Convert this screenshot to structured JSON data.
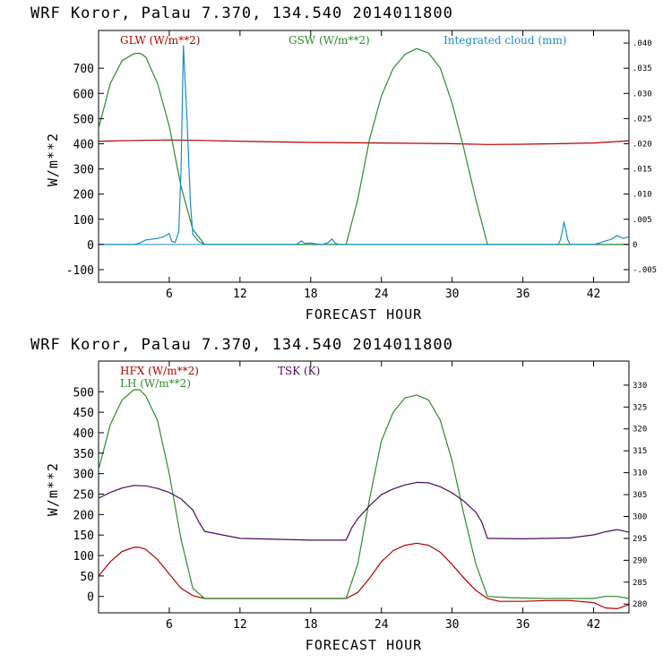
{
  "chart_data": [
    {
      "type": "line",
      "title": "WRF   Koror, Palau   7.370, 134.540  2014011800",
      "xlabel": "FORECAST HOUR",
      "ylabel": "W/m**2",
      "xlim": [
        0,
        45
      ],
      "ylim": [
        -150,
        850
      ],
      "xticks": [
        6,
        12,
        18,
        24,
        30,
        36,
        42
      ],
      "yticks": [
        -100,
        0,
        100,
        200,
        300,
        400,
        500,
        600,
        700
      ],
      "right_axis": {
        "label": "Integrated cloud (mm)",
        "ylim": [
          -0.0075,
          0.0425
        ],
        "ticks": [
          -0.005,
          0,
          0.005,
          0.01,
          0.015,
          0.02,
          0.025,
          0.03,
          0.035,
          0.04
        ],
        "tick_labels": [
          "-.005",
          "0",
          ".005",
          ".010",
          ".015",
          ".020",
          ".025",
          ".030",
          ".035",
          ".040"
        ]
      },
      "series": [
        {
          "name": "GLW (W/m**2)",
          "color": "#b30000",
          "axis": "left",
          "x": [
            0,
            3,
            6,
            9,
            12,
            18,
            24,
            30,
            33,
            36,
            39,
            42,
            45
          ],
          "y": [
            410,
            413,
            415,
            413,
            410,
            405,
            403,
            400,
            397,
            398,
            400,
            403,
            412
          ]
        },
        {
          "name": "GSW (W/m**2)",
          "color": "#2e8b2e",
          "axis": "left",
          "x": [
            0,
            1,
            2,
            3,
            3.5,
            4,
            5,
            6,
            7,
            8,
            9,
            21,
            22,
            23,
            24,
            25,
            26,
            27,
            28,
            29,
            30,
            31,
            32,
            33,
            45
          ],
          "y": [
            460,
            640,
            730,
            758,
            760,
            745,
            640,
            470,
            230,
            60,
            0,
            0,
            180,
            420,
            590,
            700,
            755,
            778,
            760,
            700,
            560,
            380,
            180,
            0,
            0
          ]
        },
        {
          "name": "Integrated cloud (mm)",
          "color": "#1a8ccc",
          "axis": "right",
          "x": [
            0,
            3,
            3.5,
            4,
            5,
            5.5,
            6,
            6.2,
            6.5,
            6.8,
            7,
            7.2,
            7.5,
            7.8,
            8,
            8.5,
            9,
            16.8,
            17.2,
            17.5,
            18,
            18.5,
            19,
            19.5,
            19.8,
            20.1,
            20.5,
            39,
            39.2,
            39.5,
            39.8,
            40,
            40.2,
            42,
            42.5,
            43,
            43.5,
            44,
            44.5,
            45
          ],
          "y": [
            0,
            0,
            0.0003,
            0.0009,
            0.0012,
            0.0015,
            0.0022,
            0.0006,
            0.0004,
            0.0025,
            0.015,
            0.0395,
            0.025,
            0.008,
            0.002,
            0.0006,
            0,
            0,
            0.0007,
            0.0002,
            0.0003,
            0.0001,
            0,
            0.0004,
            0.0011,
            0.0002,
            0,
            0,
            0.001,
            0.0045,
            0.001,
            0,
            0,
            0,
            0.0003,
            0.0007,
            0.001,
            0.0018,
            0.0012,
            0.0015
          ]
        }
      ]
    },
    {
      "type": "line",
      "title": "WRF   Koror, Palau   7.370, 134.540  2014011800",
      "xlabel": "FORECAST HOUR",
      "ylabel": "W/m**2",
      "xlim": [
        0,
        45
      ],
      "ylim": [
        -40,
        575
      ],
      "xticks": [
        6,
        12,
        18,
        24,
        30,
        36,
        42
      ],
      "yticks": [
        0,
        50,
        100,
        150,
        200,
        250,
        300,
        350,
        400,
        450,
        500
      ],
      "right_axis": {
        "label": "TSK (K)",
        "ylim": [
          278,
          335.5
        ],
        "ticks": [
          280,
          285,
          290,
          295,
          300,
          305,
          310,
          315,
          320,
          325,
          330
        ],
        "tick_labels": [
          "280",
          "285",
          "290",
          "295",
          "300",
          "305",
          "310",
          "315",
          "320",
          "325",
          "330"
        ]
      },
      "series": [
        {
          "name": "HFX (W/m**2)",
          "color": "#b30000",
          "axis": "left",
          "x": [
            0,
            1,
            2,
            3,
            3.5,
            4,
            5,
            6,
            7,
            8,
            9,
            21,
            22,
            23,
            24,
            25,
            26,
            27,
            28,
            29,
            30,
            31,
            32,
            33,
            34,
            36,
            38,
            40,
            42,
            43,
            44,
            45
          ],
          "y": [
            50,
            85,
            110,
            120,
            120,
            115,
            90,
            55,
            20,
            2,
            -5,
            -5,
            10,
            45,
            85,
            112,
            125,
            130,
            125,
            108,
            78,
            45,
            15,
            -5,
            -12,
            -12,
            -10,
            -10,
            -15,
            -28,
            -30,
            -20
          ]
        },
        {
          "name": "LH  (W/m**2)",
          "color": "#2e8b2e",
          "axis": "left",
          "x": [
            0,
            1,
            2,
            3,
            3.5,
            4,
            5,
            6,
            7,
            8,
            9,
            21,
            22,
            23,
            24,
            25,
            26,
            27,
            28,
            29,
            30,
            31,
            32,
            33,
            35,
            38,
            40,
            42,
            43,
            44,
            45
          ],
          "y": [
            310,
            420,
            480,
            505,
            505,
            490,
            430,
            300,
            140,
            20,
            -5,
            -5,
            80,
            240,
            380,
            450,
            485,
            492,
            480,
            430,
            330,
            200,
            80,
            0,
            -3,
            -5,
            -5,
            -5,
            0,
            0,
            -5
          ]
        },
        {
          "name": "TSK (K)",
          "color": "#4b0a5a",
          "axis": "right",
          "x": [
            0,
            1,
            2,
            3,
            4,
            5,
            6,
            7,
            8,
            8.5,
            9,
            12,
            18,
            21,
            21.5,
            22,
            23,
            24,
            25,
            26,
            27,
            28,
            29,
            30,
            31,
            32,
            32.5,
            33,
            36,
            38,
            40,
            42,
            43,
            44,
            45
          ],
          "y": [
            304.2,
            305.5,
            306.5,
            307.1,
            307.0,
            306.4,
            305.5,
            304.0,
            301.5,
            298.8,
            296.6,
            295.0,
            294.6,
            294.6,
            297.5,
            299.5,
            302.5,
            305.0,
            306.3,
            307.2,
            307.8,
            307.7,
            306.8,
            305.4,
            303.5,
            301.0,
            298.8,
            295.0,
            294.9,
            295.0,
            295.1,
            295.8,
            296.5,
            297.0,
            296.4
          ]
        }
      ]
    }
  ]
}
